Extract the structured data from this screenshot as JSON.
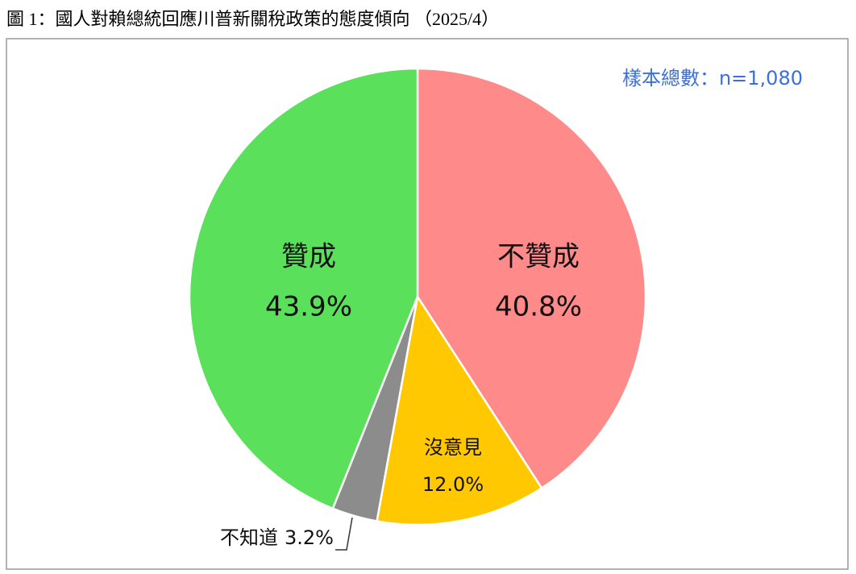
{
  "chart_data": {
    "type": "pie",
    "title": "圖 1：國人對賴總統回應川普新關稅政策的態度傾向 （2025/4）",
    "annotation": "樣本總數：n=1,080",
    "categories": [
      "不贊成",
      "沒意見",
      "不知道",
      "贊成"
    ],
    "values": [
      40.8,
      12.0,
      3.2,
      43.9
    ],
    "value_labels": [
      "40.8%",
      "12.0%",
      "3.2%",
      "43.9%"
    ],
    "colors": [
      "#ff8a8a",
      "#ffc800",
      "#8c8c8c",
      "#5ae05a"
    ]
  }
}
